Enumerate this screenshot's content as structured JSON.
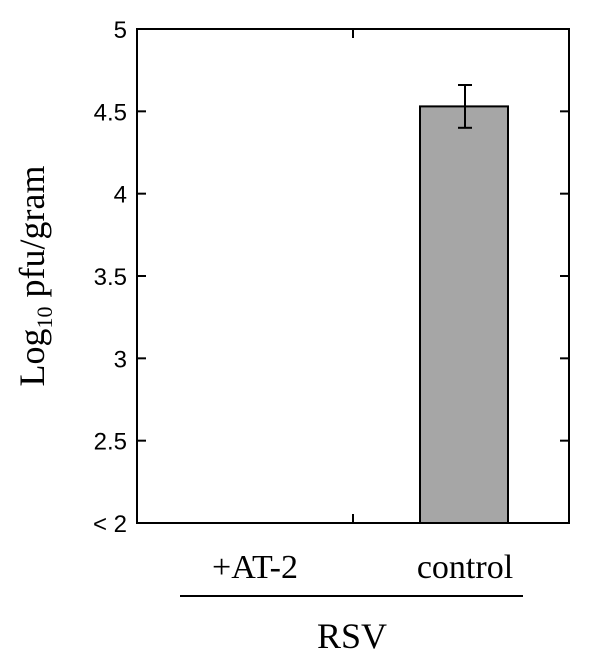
{
  "chart_data": {
    "type": "bar",
    "ylabel_main": "Log",
    "ylabel_subscript": "10",
    "ylabel_rest": " pfu/gram",
    "categories": [
      "+AT-2",
      "control"
    ],
    "values": [
      null,
      4.53
    ],
    "error": [
      null,
      0.13
    ],
    "group_label": "RSV",
    "ylim": [
      2,
      5
    ],
    "yticks": [
      2,
      2.5,
      3,
      3.5,
      4,
      4.5,
      5
    ],
    "ytick_labels": [
      "< 2",
      "2.5",
      "3",
      "3.5",
      "4",
      "4.5",
      "5"
    ],
    "bar_color": "#a6a6a6",
    "grid": false
  }
}
